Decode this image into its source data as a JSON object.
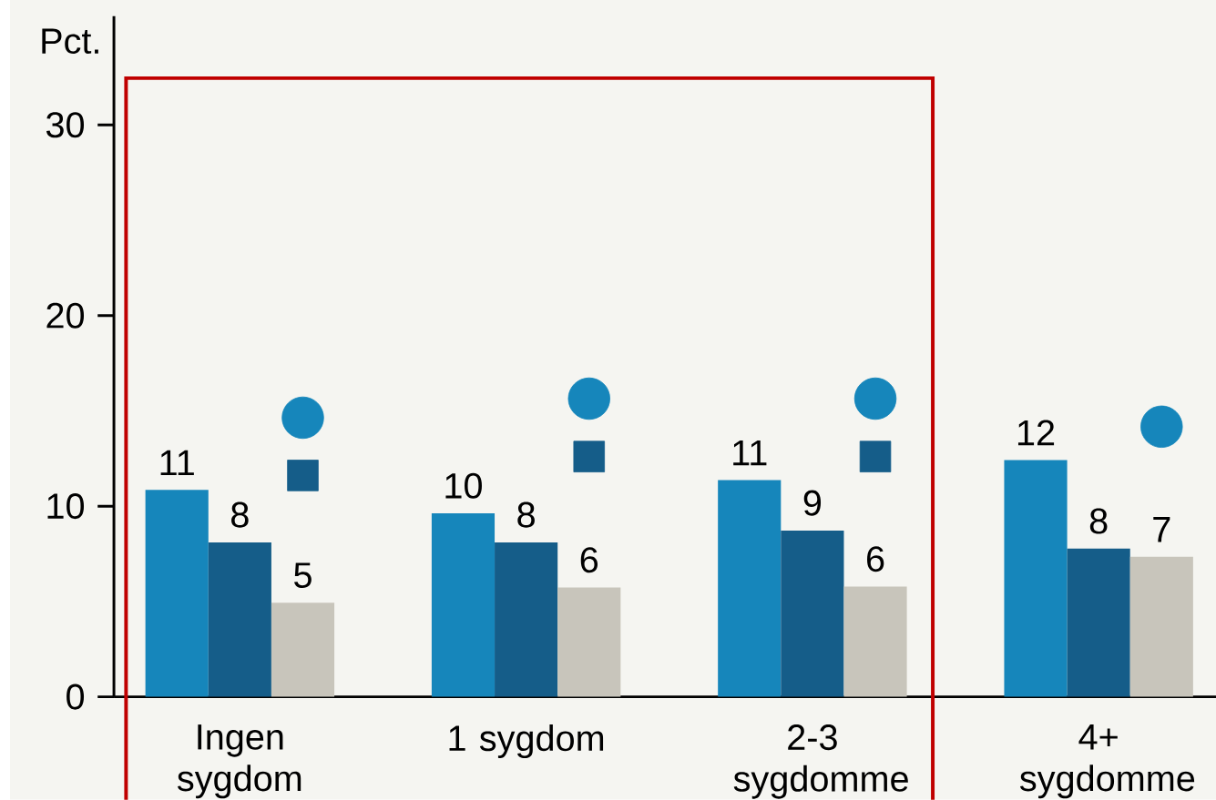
{
  "chart_data": {
    "type": "bar",
    "ylabel": "Pct.",
    "categories": [
      "Ingen sygdom",
      "1 sygdom",
      "2-3 sygdomme",
      "4+ sygdomme"
    ],
    "series": [
      {
        "color": "#1686bb",
        "values": [
          10.85,
          9.62,
          11.37,
          12.42
        ],
        "value_labels": [
          "11",
          "10",
          "11",
          "12"
        ]
      },
      {
        "color": "#155d89",
        "values": [
          8.1,
          8.1,
          8.72,
          7.77
        ],
        "value_labels": [
          "8",
          "8",
          "9",
          "8"
        ]
      },
      {
        "color": "#c8c5bb",
        "values": [
          4.93,
          5.73,
          5.78,
          7.35
        ],
        "value_labels": [
          "5",
          "6",
          "6",
          "7"
        ]
      },
      {
        "type": "scatter",
        "marker": "circle",
        "color": "#1686bb",
        "values": [
          14.64,
          15.64,
          15.64,
          14.17
        ]
      },
      {
        "type": "scatter",
        "marker": "square",
        "color": "#155d89",
        "values": [
          11.61,
          12.6,
          12.6,
          null
        ]
      }
    ],
    "ylim": [
      0,
      35.7
    ],
    "yticks": [
      0,
      10,
      20,
      30
    ],
    "grid": false
  }
}
